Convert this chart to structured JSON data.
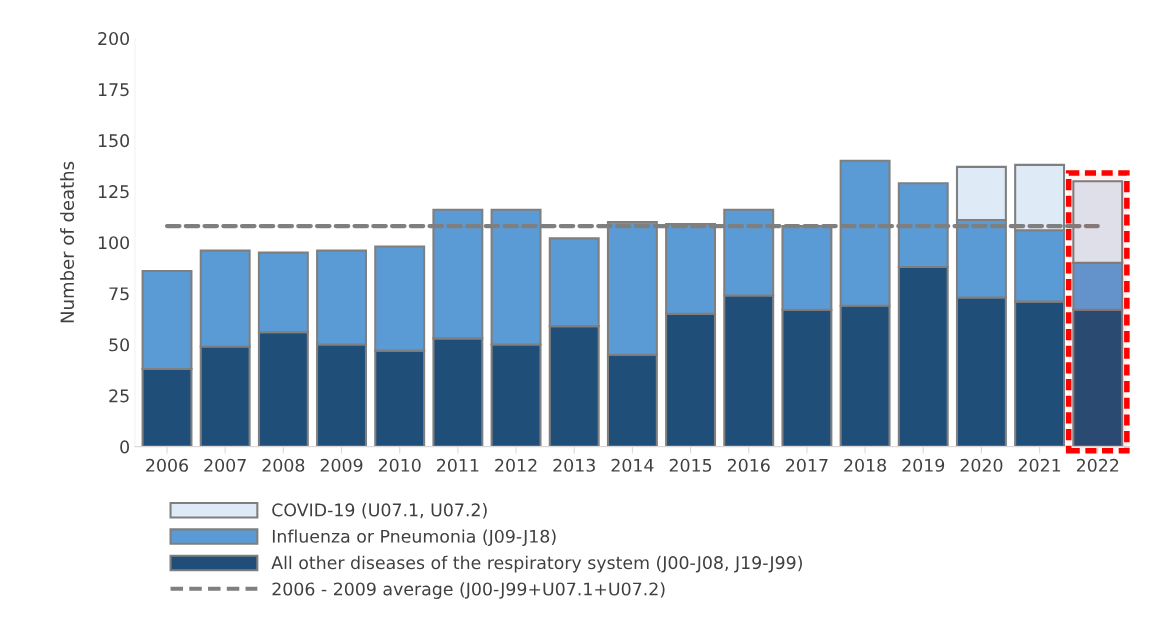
{
  "chart_data": {
    "type": "bar",
    "stacked": true,
    "ylabel": "Number of deaths",
    "categories": [
      "2006",
      "2007",
      "2008",
      "2009",
      "2010",
      "2011",
      "2012",
      "2013",
      "2014",
      "2015",
      "2016",
      "2017",
      "2018",
      "2019",
      "2020",
      "2021",
      "2022"
    ],
    "series": [
      {
        "name": "All other diseases of the respiratory system (J00-J08, J19-J99)",
        "color": "#1f4e79",
        "values": [
          38,
          49,
          56,
          50,
          47,
          53,
          50,
          59,
          45,
          65,
          74,
          67,
          69,
          88,
          73,
          71,
          67
        ]
      },
      {
        "name": "Influenza or Pneumonia (J09-J18)",
        "color": "#5b9bd5",
        "values": [
          48,
          47,
          39,
          46,
          51,
          63,
          66,
          43,
          65,
          44,
          42,
          41,
          71,
          41,
          38,
          35,
          23
        ]
      },
      {
        "name": "COVID-19 (U07.1, U07.2)",
        "color": "#deebf7",
        "values": [
          null,
          null,
          null,
          null,
          null,
          null,
          null,
          null,
          null,
          null,
          null,
          null,
          null,
          null,
          26,
          32,
          40
        ]
      }
    ],
    "ref_lines": [
      {
        "axis": "y",
        "value": 108,
        "label": "2006 - 2009 average (J00-J99+U07.1+U07.2)",
        "color": "#7f7f7f",
        "line_style": "dashed"
      }
    ],
    "bands": [
      {
        "axis": "x",
        "from": "2022",
        "to": "2022",
        "color": "#ff0000"
      }
    ],
    "ylim": [
      0,
      200
    ],
    "yticks": [
      0,
      25,
      50,
      75,
      100,
      125,
      150,
      175,
      200
    ],
    "grid": false,
    "legend": "bottom"
  }
}
